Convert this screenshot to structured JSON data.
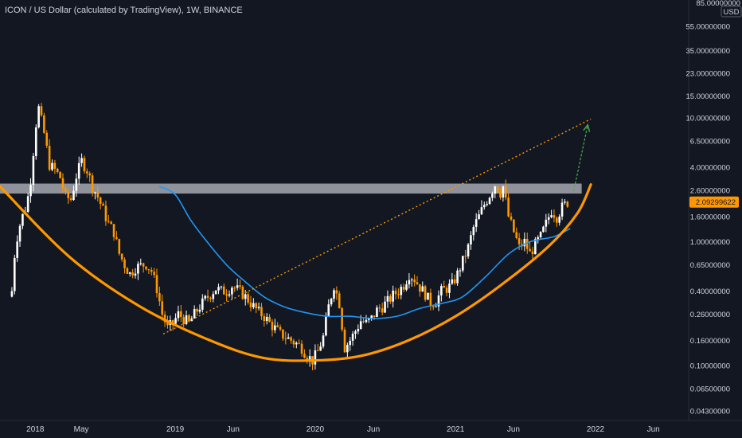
{
  "header": {
    "title": "ICON / US Dollar (calculated by TradingView), 1W, BINANCE"
  },
  "price_axis": {
    "unit": "USD",
    "top_label": "85.00000000",
    "current_price": "2.09299622"
  },
  "colors": {
    "background": "#131722",
    "candle_up": "#ffffff",
    "candle_down": "#ff9800",
    "bowl": "#ff9800",
    "moving_average": "#2196f3",
    "resistance_zone": "#b2b5be",
    "target_arrow": "#4caf50",
    "price_tag": "#ff9800"
  },
  "chart_data": {
    "type": "candlestick",
    "title": "ICON / US Dollar (calculated by TradingView), 1W, BINANCE",
    "y_scale": "log",
    "ylim": [
      0.038,
      90
    ],
    "xlim": [
      "2017-10-01",
      "2022-09-01"
    ],
    "y_ticks": [
      "55.00000000",
      "35.00000000",
      "23.00000000",
      "15.00000000",
      "10.00000000",
      "6.50000000",
      "4.00000000",
      "2.60000000",
      "1.60000000",
      "1.00000000",
      "0.65000000",
      "0.40000000",
      "0.26000000",
      "0.16000000",
      "0.10000000",
      "0.06500000",
      "0.04300000"
    ],
    "y_tick_values": [
      55,
      35,
      23,
      15,
      10,
      6.5,
      4.0,
      2.6,
      1.6,
      1.0,
      0.65,
      0.4,
      0.26,
      0.16,
      0.1,
      0.065,
      0.043
    ],
    "x_ticks": [
      {
        "label": "2018",
        "date": "2018-01-01"
      },
      {
        "label": "May",
        "date": "2018-05-01"
      },
      {
        "label": "2019",
        "date": "2019-01-01"
      },
      {
        "label": "Jun",
        "date": "2019-06-01"
      },
      {
        "label": "2020",
        "date": "2020-01-01"
      },
      {
        "label": "Jun",
        "date": "2020-06-01"
      },
      {
        "label": "2021",
        "date": "2021-01-01"
      },
      {
        "label": "Jun",
        "date": "2021-06-01"
      },
      {
        "label": "2022",
        "date": "2022-01-01"
      },
      {
        "label": "Jun",
        "date": "2022-06-01"
      }
    ],
    "price_path": [
      [
        "2017-11-01",
        0.4
      ],
      [
        "2017-11-10",
        0.95
      ],
      [
        "2017-11-25",
        1.5
      ],
      [
        "2017-12-10",
        2.0
      ],
      [
        "2017-12-20",
        3.2
      ],
      [
        "2018-01-03",
        9.0
      ],
      [
        "2018-01-10",
        12.0
      ],
      [
        "2018-01-24",
        7.5
      ],
      [
        "2018-02-07",
        4.2
      ],
      [
        "2018-02-21",
        3.8
      ],
      [
        "2018-03-07",
        3.3
      ],
      [
        "2018-03-21",
        2.3
      ],
      [
        "2018-04-04",
        2.2
      ],
      [
        "2018-04-18",
        3.4
      ],
      [
        "2018-05-02",
        4.5
      ],
      [
        "2018-05-16",
        3.8
      ],
      [
        "2018-05-30",
        2.8
      ],
      [
        "2018-06-13",
        2.3
      ],
      [
        "2018-06-27",
        1.8
      ],
      [
        "2018-07-11",
        1.4
      ],
      [
        "2018-07-25",
        1.2
      ],
      [
        "2018-08-08",
        0.8
      ],
      [
        "2018-08-22",
        0.65
      ],
      [
        "2018-09-05",
        0.55
      ],
      [
        "2018-09-19",
        0.62
      ],
      [
        "2018-10-03",
        0.64
      ],
      [
        "2018-10-17",
        0.66
      ],
      [
        "2018-10-31",
        0.58
      ],
      [
        "2018-11-14",
        0.42
      ],
      [
        "2018-11-28",
        0.26
      ],
      [
        "2018-12-12",
        0.2
      ],
      [
        "2018-12-26",
        0.22
      ],
      [
        "2019-01-09",
        0.26
      ],
      [
        "2019-01-23",
        0.24
      ],
      [
        "2019-02-06",
        0.22
      ],
      [
        "2019-02-20",
        0.26
      ],
      [
        "2019-03-06",
        0.3
      ],
      [
        "2019-03-20",
        0.34
      ],
      [
        "2019-04-03",
        0.38
      ],
      [
        "2019-04-17",
        0.42
      ],
      [
        "2019-05-01",
        0.4
      ],
      [
        "2019-05-15",
        0.4
      ],
      [
        "2019-05-29",
        0.44
      ],
      [
        "2019-06-12",
        0.41
      ],
      [
        "2019-06-26",
        0.38
      ],
      [
        "2019-07-10",
        0.34
      ],
      [
        "2019-07-24",
        0.3
      ],
      [
        "2019-08-07",
        0.27
      ],
      [
        "2019-08-21",
        0.25
      ],
      [
        "2019-09-04",
        0.22
      ],
      [
        "2019-09-18",
        0.2
      ],
      [
        "2019-10-02",
        0.18
      ],
      [
        "2019-10-16",
        0.17
      ],
      [
        "2019-10-30",
        0.16
      ],
      [
        "2019-11-13",
        0.15
      ],
      [
        "2019-11-27",
        0.14
      ],
      [
        "2019-12-11",
        0.12
      ],
      [
        "2019-12-25",
        0.11
      ],
      [
        "2020-01-08",
        0.13
      ],
      [
        "2020-01-22",
        0.17
      ],
      [
        "2020-02-05",
        0.3
      ],
      [
        "2020-02-19",
        0.45
      ],
      [
        "2020-03-04",
        0.32
      ],
      [
        "2020-03-18",
        0.14
      ],
      [
        "2020-04-01",
        0.16
      ],
      [
        "2020-04-15",
        0.19
      ],
      [
        "2020-04-29",
        0.23
      ],
      [
        "2020-05-13",
        0.22
      ],
      [
        "2020-05-27",
        0.24
      ],
      [
        "2020-06-10",
        0.28
      ],
      [
        "2020-06-24",
        0.3
      ],
      [
        "2020-07-08",
        0.33
      ],
      [
        "2020-07-22",
        0.37
      ],
      [
        "2020-08-05",
        0.4
      ],
      [
        "2020-08-19",
        0.45
      ],
      [
        "2020-09-02",
        0.55
      ],
      [
        "2020-09-16",
        0.5
      ],
      [
        "2020-09-30",
        0.43
      ],
      [
        "2020-10-14",
        0.38
      ],
      [
        "2020-10-28",
        0.32
      ],
      [
        "2020-11-11",
        0.33
      ],
      [
        "2020-11-25",
        0.4
      ],
      [
        "2020-12-09",
        0.42
      ],
      [
        "2020-12-23",
        0.45
      ],
      [
        "2021-01-06",
        0.55
      ],
      [
        "2021-01-20",
        0.7
      ],
      [
        "2021-02-03",
        0.9
      ],
      [
        "2021-02-17",
        1.3
      ],
      [
        "2021-03-03",
        1.6
      ],
      [
        "2021-03-17",
        2.0
      ],
      [
        "2021-03-31",
        2.4
      ],
      [
        "2021-04-14",
        2.9
      ],
      [
        "2021-04-28",
        2.5
      ],
      [
        "2021-05-05",
        2.8
      ],
      [
        "2021-05-19",
        1.6
      ],
      [
        "2021-06-02",
        1.2
      ],
      [
        "2021-06-16",
        0.9
      ],
      [
        "2021-06-30",
        1.0
      ],
      [
        "2021-07-14",
        0.8
      ],
      [
        "2021-07-28",
        0.95
      ],
      [
        "2021-08-11",
        1.1
      ],
      [
        "2021-08-25",
        1.4
      ],
      [
        "2021-09-08",
        1.8
      ],
      [
        "2021-09-22",
        1.6
      ],
      [
        "2021-10-06",
        1.9
      ],
      [
        "2021-10-20",
        2.09
      ]
    ],
    "moving_average": [
      [
        "2018-11-20",
        2.8
      ],
      [
        "2019-01-01",
        2.4
      ],
      [
        "2019-02-10",
        1.5
      ],
      [
        "2019-03-25",
        1.0
      ],
      [
        "2019-05-15",
        0.65
      ],
      [
        "2019-07-01",
        0.48
      ],
      [
        "2019-08-20",
        0.36
      ],
      [
        "2019-10-10",
        0.3
      ],
      [
        "2019-12-01",
        0.27
      ],
      [
        "2020-02-01",
        0.25
      ],
      [
        "2020-04-01",
        0.25
      ],
      [
        "2020-06-01",
        0.24
      ],
      [
        "2020-08-01",
        0.25
      ],
      [
        "2020-10-01",
        0.29
      ],
      [
        "2020-12-01",
        0.32
      ],
      [
        "2021-01-20",
        0.36
      ],
      [
        "2021-03-20",
        0.52
      ],
      [
        "2021-05-20",
        0.8
      ],
      [
        "2021-07-15",
        1.0
      ],
      [
        "2021-09-15",
        1.1
      ],
      [
        "2021-10-27",
        1.28
      ]
    ],
    "resistance_zone": {
      "x": [
        "2017-10-01",
        "2021-11-26"
      ],
      "y": [
        2.45,
        2.95
      ]
    },
    "rounded_bottom": [
      [
        "2017-10-01",
        2.8
      ],
      [
        "2018-04-01",
        0.75
      ],
      [
        "2018-10-01",
        0.3
      ],
      [
        "2019-04-01",
        0.16
      ],
      [
        "2019-08-20",
        0.115
      ],
      [
        "2020-01-01",
        0.11
      ],
      [
        "2020-05-01",
        0.12
      ],
      [
        "2020-09-01",
        0.16
      ],
      [
        "2021-01-01",
        0.25
      ],
      [
        "2021-05-01",
        0.45
      ],
      [
        "2021-09-01",
        0.92
      ],
      [
        "2021-11-15",
        1.7
      ],
      [
        "2021-12-20",
        2.9
      ]
    ],
    "trendline": [
      [
        "2018-12-01",
        0.18
      ],
      [
        "2021-12-20",
        9.8
      ]
    ],
    "target_arrow": [
      [
        "2021-11-05",
        2.55
      ],
      [
        "2021-12-12",
        8.8
      ]
    ]
  }
}
